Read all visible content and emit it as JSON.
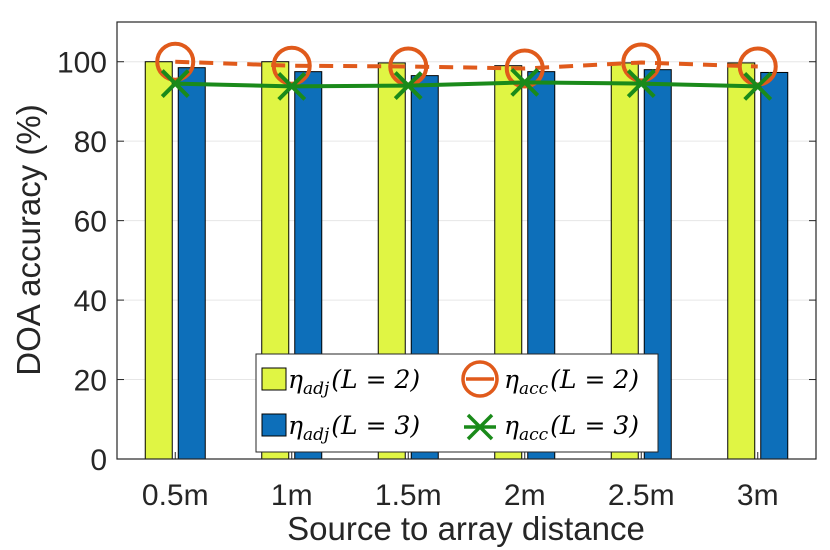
{
  "chart_data": {
    "type": "bar",
    "categories": [
      "0.5m",
      "1m",
      "1.5m",
      "2m",
      "2.5m",
      "3m"
    ],
    "xlabel": "Source to array distance",
    "ylabel": "DOA accuracy (%)",
    "ylim": [
      0,
      110
    ],
    "yticks": [
      0,
      20,
      40,
      60,
      80,
      100
    ],
    "grid": true,
    "legend_position": "bottom-center",
    "bar_series": [
      {
        "name": "η_adj(L = 2)",
        "values": [
          100,
          100,
          99.7,
          99,
          99.7,
          99.7
        ],
        "color": "#e0f544"
      },
      {
        "name": "η_adj(L = 3)",
        "values": [
          98.5,
          97.5,
          96.5,
          97.5,
          98,
          97.3
        ],
        "color": "#0d6fba"
      }
    ],
    "line_series": [
      {
        "name": "η_acc(L = 2)",
        "values": [
          100,
          99,
          98.8,
          98.3,
          99.8,
          98.8
        ],
        "color": "#e05a1b",
        "marker": "circle",
        "line": "dashed"
      },
      {
        "name": "η_acc(L = 3)",
        "values": [
          94.5,
          93.8,
          94,
          94.8,
          94.5,
          93.8
        ],
        "color": "#1a8a1a",
        "marker": "x",
        "line": "solid"
      }
    ]
  },
  "legend": {
    "adj_l2": {
      "greek": "η",
      "sub": "adj",
      "cond": "(L = 2)"
    },
    "adj_l3": {
      "greek": "η",
      "sub": "adj",
      "cond": "(L = 3)"
    },
    "acc_l2": {
      "greek": "η",
      "sub": "acc",
      "cond": "(L = 2)"
    },
    "acc_l3": {
      "greek": "η",
      "sub": "acc",
      "cond": "(L = 3)"
    }
  }
}
